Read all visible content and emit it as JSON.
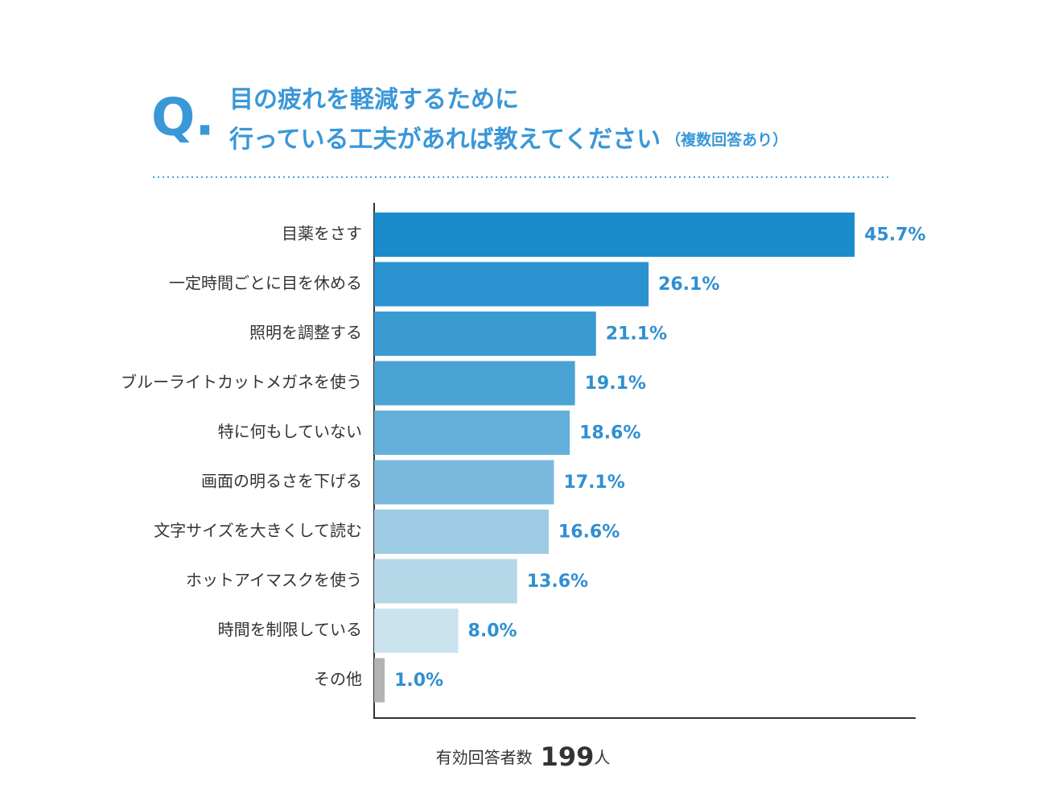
{
  "chart_data": {
    "type": "hbar",
    "q_mark": "Q.",
    "title": [
      "目の疲れを軽減するために",
      "行っている工夫があれば教えてください"
    ],
    "subtitle": "（複数回答あり）",
    "categories": [
      "目薬をさす",
      "一定時間ごとに目を休める",
      "照明を調整する",
      "ブルーライトカットメガネを使う",
      "特に何もしていない",
      "画面の明るさを下げる",
      "文字サイズを大きくして読む",
      "ホットアイマスクを使う",
      "時間を制限している",
      "その他"
    ],
    "values": [
      45.7,
      26.1,
      21.1,
      19.1,
      18.6,
      17.1,
      16.6,
      13.6,
      8.0,
      1.0
    ],
    "value_labels": [
      "45.7%",
      "26.1%",
      "21.1%",
      "19.1%",
      "18.6%",
      "17.1%",
      "16.6%",
      "13.6%",
      "8.0%",
      "1.0%"
    ],
    "colors": [
      "#1a8bcb",
      "#2a93cf",
      "#3a9bd2",
      "#4ba3d5",
      "#62afd9",
      "#7ab9dd",
      "#9dcbe3",
      "#b5d8e9",
      "#cbe3ef",
      "#b3b3b3"
    ],
    "xlim": [
      0,
      51.5
    ],
    "respondents": {
      "label": "有効回答者数",
      "count": 199,
      "unit": "人"
    }
  }
}
